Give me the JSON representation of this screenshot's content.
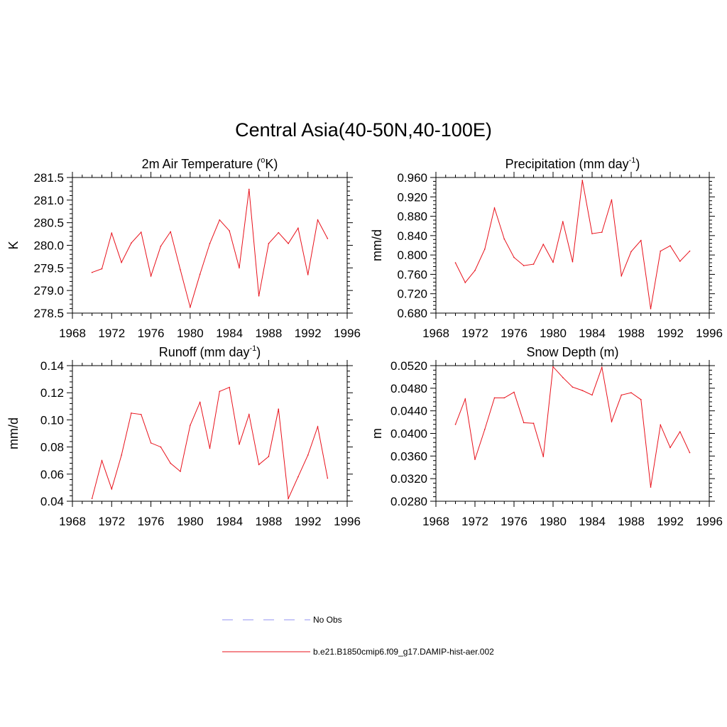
{
  "title": "Central Asia(40-50N,40-100E)",
  "colors": {
    "model": "#e8101a",
    "obs": "#a9a9f5",
    "axis": "#000000"
  },
  "legend": {
    "obs_label": "No Obs",
    "model_label": "b.e21.B1850cmip6.f09_g17.DAMIP-hist-aer.002"
  },
  "panels": [
    {
      "title_main": "2m Air Temperature (",
      "title_sup": "o",
      "title_tail": "K)",
      "ylabel": "K"
    },
    {
      "title_main": "Precipitation (mm day",
      "title_sup": "-1",
      "title_tail": ")",
      "ylabel": "mm/d"
    },
    {
      "title_main": "Runoff (mm day",
      "title_sup": "-1",
      "title_tail": ")",
      "ylabel": "mm/d"
    },
    {
      "title_main": "Snow Depth (m)",
      "title_sup": "",
      "title_tail": "",
      "ylabel": "m"
    }
  ],
  "chart_data": [
    {
      "type": "line",
      "title": "2m Air Temperature (oK)",
      "ylabel": "K",
      "xlim": [
        1968,
        1996
      ],
      "xticks": [
        1968,
        1972,
        1976,
        1980,
        1984,
        1988,
        1992,
        1996
      ],
      "ylim": [
        278.5,
        281.5
      ],
      "yticks": [
        "278.5",
        "279.0",
        "279.5",
        "280.0",
        "280.5",
        "281.0",
        "281.5"
      ],
      "x": [
        1970,
        1971,
        1972,
        1973,
        1974,
        1975,
        1976,
        1977,
        1978,
        1979,
        1980,
        1981,
        1982,
        1983,
        1984,
        1985,
        1986,
        1987,
        1988,
        1989,
        1990,
        1991,
        1992,
        1993,
        1994
      ],
      "series": [
        {
          "name": "b.e21.B1850cmip6.f09_g17.DAMIP-hist-aer.002",
          "values": [
            279.4,
            279.48,
            280.27,
            279.62,
            280.05,
            280.29,
            279.32,
            279.98,
            280.3,
            279.46,
            278.63,
            279.36,
            280.04,
            280.56,
            280.32,
            279.5,
            281.24,
            278.88,
            280.04,
            280.28,
            280.04,
            280.38,
            279.35,
            280.56,
            280.15
          ]
        }
      ]
    },
    {
      "type": "line",
      "title": "Precipitation (mm day-1)",
      "ylabel": "mm/d",
      "xlim": [
        1968,
        1996
      ],
      "xticks": [
        1968,
        1972,
        1976,
        1980,
        1984,
        1988,
        1992,
        1996
      ],
      "ylim": [
        0.68,
        0.96
      ],
      "yticks": [
        "0.680",
        "0.720",
        "0.760",
        "0.800",
        "0.840",
        "0.880",
        "0.920",
        "0.960"
      ],
      "x": [
        1970,
        1971,
        1972,
        1973,
        1974,
        1975,
        1976,
        1977,
        1978,
        1979,
        1980,
        1981,
        1982,
        1983,
        1984,
        1985,
        1986,
        1987,
        1988,
        1989,
        1990,
        1991,
        1992,
        1993,
        1994
      ],
      "series": [
        {
          "name": "b.e21.B1850cmip6.f09_g17.DAMIP-hist-aer.002",
          "values": [
            0.784,
            0.743,
            0.768,
            0.812,
            0.897,
            0.833,
            0.795,
            0.778,
            0.781,
            0.822,
            0.785,
            0.869,
            0.786,
            0.954,
            0.844,
            0.847,
            0.914,
            0.757,
            0.807,
            0.83,
            0.689,
            0.808,
            0.819,
            0.787,
            0.808
          ]
        }
      ]
    },
    {
      "type": "line",
      "title": "Runoff (mm day-1)",
      "ylabel": "mm/d",
      "xlim": [
        1968,
        1996
      ],
      "xticks": [
        1968,
        1972,
        1976,
        1980,
        1984,
        1988,
        1992,
        1996
      ],
      "ylim": [
        0.04,
        0.14
      ],
      "yticks": [
        "0.04",
        "0.06",
        "0.08",
        "0.10",
        "0.12",
        "0.14"
      ],
      "x": [
        1970,
        1971,
        1972,
        1973,
        1974,
        1975,
        1976,
        1977,
        1978,
        1979,
        1980,
        1981,
        1982,
        1983,
        1984,
        1985,
        1986,
        1987,
        1988,
        1989,
        1990,
        1991,
        1992,
        1993,
        1994
      ],
      "series": [
        {
          "name": "b.e21.B1850cmip6.f09_g17.DAMIP-hist-aer.002",
          "values": [
            0.042,
            0.07,
            0.049,
            0.074,
            0.105,
            0.104,
            0.083,
            0.08,
            0.068,
            0.062,
            0.096,
            0.113,
            0.079,
            0.121,
            0.124,
            0.082,
            0.104,
            0.067,
            0.073,
            0.108,
            0.042,
            0.058,
            0.074,
            0.095,
            0.057
          ]
        }
      ]
    },
    {
      "type": "line",
      "title": "Snow Depth (m)",
      "ylabel": "m",
      "xlim": [
        1968,
        1996
      ],
      "xticks": [
        1968,
        1972,
        1976,
        1980,
        1984,
        1988,
        1992,
        1996
      ],
      "ylim": [
        0.028,
        0.052
      ],
      "yticks": [
        "0.0280",
        "0.0320",
        "0.0360",
        "0.0400",
        "0.0440",
        "0.0480",
        "0.0520"
      ],
      "x": [
        1970,
        1971,
        1972,
        1973,
        1974,
        1975,
        1976,
        1977,
        1978,
        1979,
        1980,
        1981,
        1982,
        1983,
        1984,
        1985,
        1986,
        1987,
        1988,
        1989,
        1990,
        1991,
        1992,
        1993,
        1994
      ],
      "series": [
        {
          "name": "b.e21.B1850cmip6.f09_g17.DAMIP-hist-aer.002",
          "values": [
            0.0416,
            0.0461,
            0.0354,
            0.0407,
            0.0463,
            0.0463,
            0.0473,
            0.0419,
            0.0418,
            0.0359,
            0.0518,
            0.0499,
            0.0482,
            0.0476,
            0.0468,
            0.0517,
            0.0421,
            0.0468,
            0.0472,
            0.046,
            0.0305,
            0.0415,
            0.0375,
            0.0403,
            0.0366
          ]
        }
      ]
    }
  ]
}
